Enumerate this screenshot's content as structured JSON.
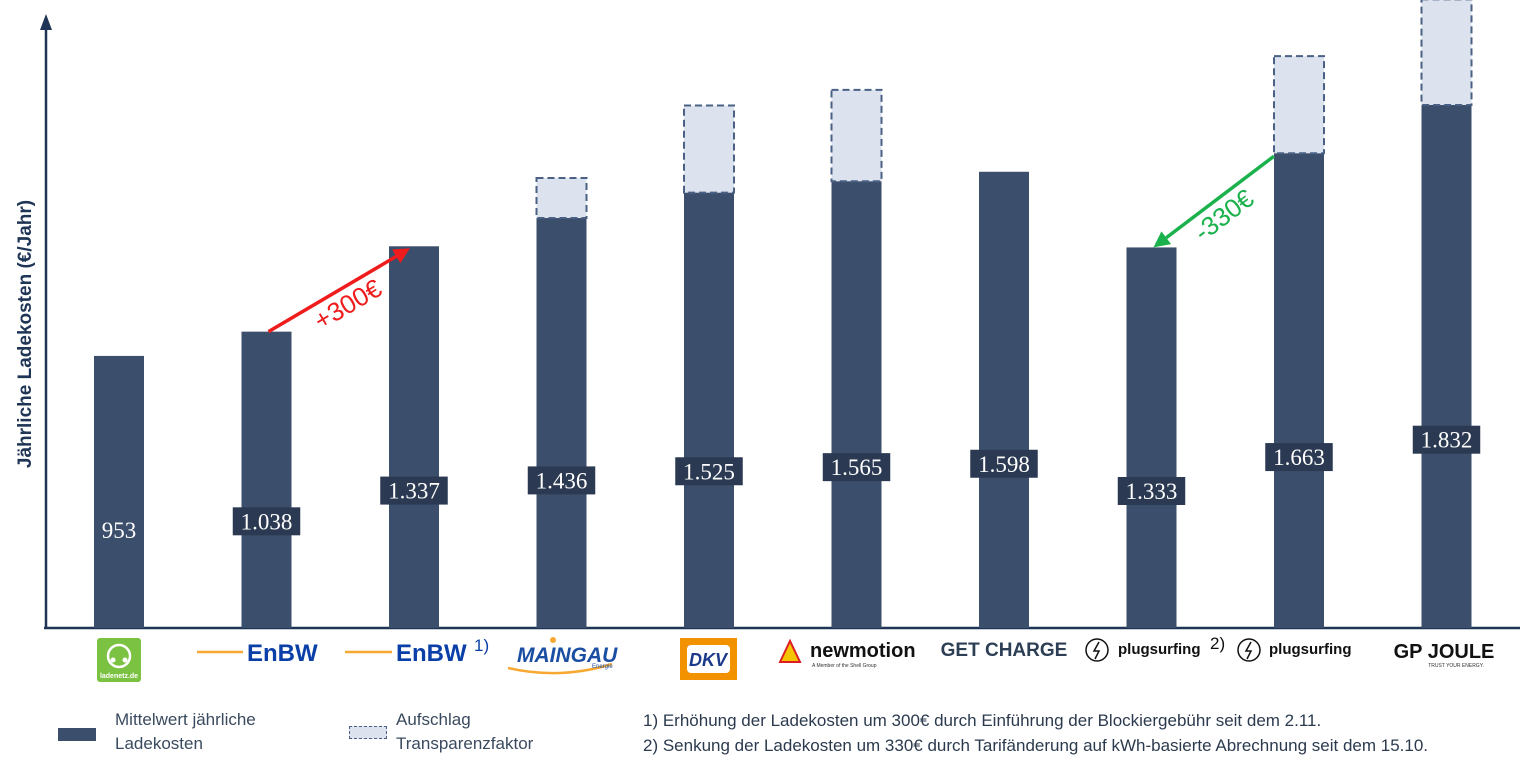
{
  "chart_data": {
    "type": "bar",
    "ylabel": "Jährliche Ladekosten (€/Jahr)",
    "categories": [
      "ladenetz.de",
      "EnBW",
      "EnBW",
      "MAINGAU",
      "DKV",
      "newmotion",
      "GET CHARGE",
      "plugsurfing",
      "plugsurfing",
      "GP JOULE"
    ],
    "category_marks": [
      "",
      "",
      "1)",
      "",
      "",
      "",
      "",
      "2)",
      "",
      ""
    ],
    "series": [
      {
        "name": "Mittelwert jährliche Ladekosten",
        "values": [
          953,
          1038,
          1337,
          1436,
          1525,
          1565,
          1598,
          1333,
          1663,
          1832
        ],
        "labels": [
          "953",
          "1.038",
          "1.337",
          "1.436",
          "1.525",
          "1.565",
          "1.598",
          "1.333",
          "1.663",
          "1.832"
        ],
        "color": "#3b4e6b"
      },
      {
        "name": "Aufschlag Transparenzfaktor",
        "values": [
          0,
          0,
          0,
          140,
          305,
          320,
          0,
          0,
          340,
          370
        ],
        "color": "#dde3ee"
      }
    ],
    "ylim": [
      0,
      2400
    ],
    "stacked": true,
    "grid": false,
    "annotations": [
      {
        "text": "+300€",
        "from_category": 1,
        "to_category": 2,
        "color": "#ee1c1c"
      },
      {
        "text": "-330€",
        "from_category": 8,
        "to_category": 7,
        "color": "#1bb14c"
      }
    ]
  },
  "legend": {
    "solid_label": "Mittelwert jährliche Ladekosten",
    "dashed_label": "Aufschlag Transparenzfaktor"
  },
  "logos": {
    "ladenetz_text": "ladenetz.de",
    "maingau_sub": "Energie",
    "newmotion_sub": "A Member of the Shell Group",
    "gpjoule_sub": "TRUST YOUR ENERGY."
  },
  "footnotes": [
    "1) Erhöhung der Ladekosten um 300€ durch Einführung der Blockiergebühr seit dem 2.11.",
    "2) Senkung der Ladekosten um 330€ durch Tarifänderung auf kWh-basierte Abrechnung seit dem 15.10."
  ],
  "colors": {
    "bar": "#3b4e6b",
    "surcharge_fill": "#dde3ee",
    "surcharge_stroke": "#4a6185",
    "axis": "#1f3556"
  }
}
